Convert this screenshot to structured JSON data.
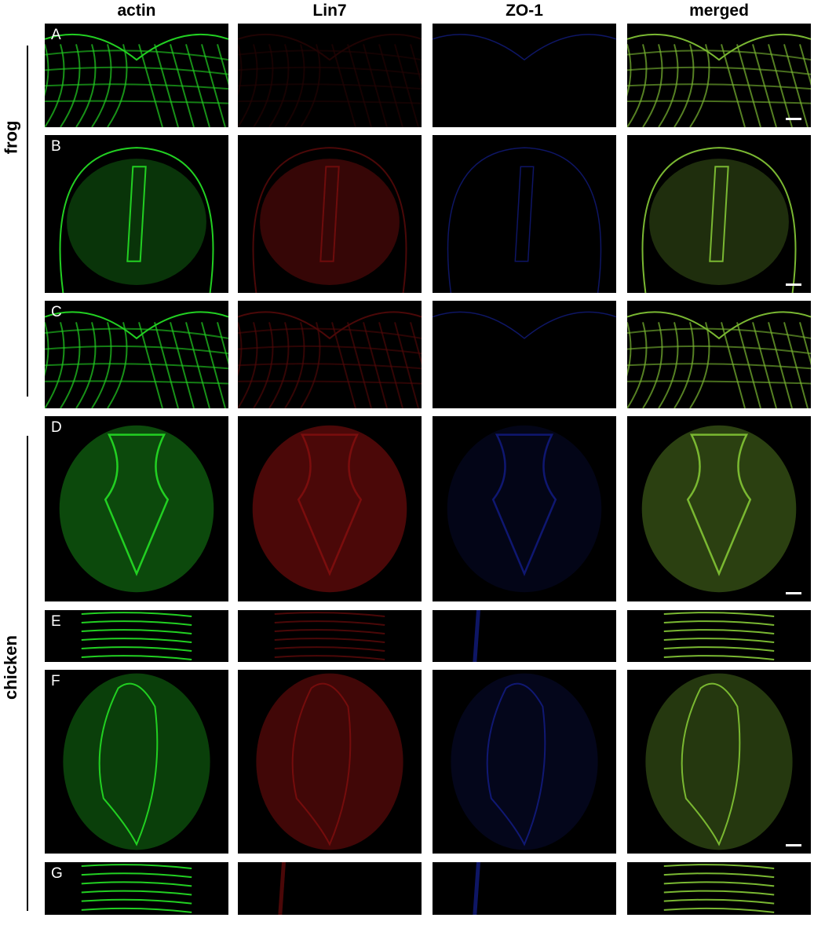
{
  "columns": [
    {
      "label": "actin",
      "color": "#22d022"
    },
    {
      "label": "Lin7",
      "color": "#d81818"
    },
    {
      "label": "ZO-1",
      "color": "#2030e0"
    },
    {
      "label": "merged",
      "color": "#7ab832"
    }
  ],
  "species": [
    {
      "label": "frog",
      "rows": [
        "A",
        "B",
        "C"
      ]
    },
    {
      "label": "chicken",
      "rows": [
        "D",
        "E",
        "F",
        "G"
      ]
    }
  ],
  "rows": [
    {
      "letter": "A",
      "shape": "dorsal",
      "scale_bar": true
    },
    {
      "letter": "B",
      "shape": "tube-narrow",
      "scale_bar": true
    },
    {
      "letter": "C",
      "shape": "cells",
      "scale_bar": false
    },
    {
      "letter": "D",
      "shape": "v-lumen",
      "scale_bar": true
    },
    {
      "letter": "E",
      "shape": "strip",
      "scale_bar": false
    },
    {
      "letter": "F",
      "shape": "oval-lumen",
      "scale_bar": true
    },
    {
      "letter": "G",
      "shape": "strip",
      "scale_bar": false
    }
  ]
}
